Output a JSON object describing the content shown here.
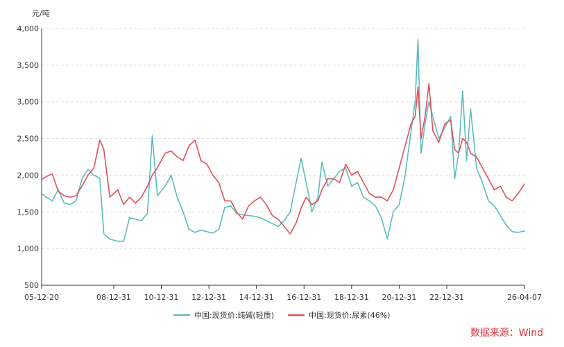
{
  "chart_data": {
    "type": "line",
    "title": "",
    "ylabel": "元/吨",
    "xlabel": "",
    "ylim": [
      500,
      4000
    ],
    "yticks": [
      500,
      1000,
      1500,
      2000,
      2500,
      3000,
      3500,
      4000
    ],
    "ytick_labels": [
      "500",
      "1,000",
      "1,500",
      "2,000",
      "2,500",
      "3,000",
      "3,500",
      "4,000"
    ],
    "xlim": [
      "2005-12-20",
      "2026-04-07"
    ],
    "xticks": [
      "2005-12-20",
      "2008-12-31",
      "2010-12-31",
      "2012-12-31",
      "2014-12-31",
      "2016-12-31",
      "2018-12-31",
      "2020-12-31",
      "2022-12-31",
      "2026-04-07"
    ],
    "xtick_labels": [
      "05-12-20",
      "08-12-31",
      "10-12-31",
      "12-12-31",
      "14-12-31",
      "16-12-31",
      "18-12-31",
      "20-12-31",
      "22-12-31",
      "26-04-07"
    ],
    "grid": "horizontal-dashed",
    "legend_position": "bottom-center",
    "source": "数据来源：Wind",
    "series": [
      {
        "name": "中国:现货价:纯碱(轻质)",
        "color": "#5bbcbd",
        "points": [
          [
            "2005-12-20",
            1750
          ],
          [
            "2006-03-01",
            1700
          ],
          [
            "2006-06-01",
            1650
          ],
          [
            "2006-09-01",
            1800
          ],
          [
            "2006-12-01",
            1620
          ],
          [
            "2007-03-01",
            1600
          ],
          [
            "2007-06-01",
            1650
          ],
          [
            "2007-09-01",
            1950
          ],
          [
            "2007-12-01",
            2080
          ],
          [
            "2008-03-01",
            2000
          ],
          [
            "2008-06-01",
            1960
          ],
          [
            "2008-08-01",
            1200
          ],
          [
            "2008-11-01",
            1130
          ],
          [
            "2009-03-01",
            1100
          ],
          [
            "2009-06-01",
            1100
          ],
          [
            "2009-09-01",
            1420
          ],
          [
            "2009-12-01",
            1400
          ],
          [
            "2010-03-01",
            1380
          ],
          [
            "2010-06-01",
            1480
          ],
          [
            "2010-08-15",
            2540
          ],
          [
            "2010-11-01",
            1720
          ],
          [
            "2011-03-01",
            1850
          ],
          [
            "2011-06-01",
            2000
          ],
          [
            "2011-09-01",
            1700
          ],
          [
            "2011-12-01",
            1500
          ],
          [
            "2012-03-01",
            1260
          ],
          [
            "2012-06-01",
            1220
          ],
          [
            "2012-09-01",
            1250
          ],
          [
            "2012-12-01",
            1230
          ],
          [
            "2013-03-01",
            1210
          ],
          [
            "2013-06-01",
            1260
          ],
          [
            "2013-09-01",
            1560
          ],
          [
            "2013-12-01",
            1580
          ],
          [
            "2014-03-01",
            1480
          ],
          [
            "2014-06-01",
            1460
          ],
          [
            "2014-09-01",
            1450
          ],
          [
            "2014-12-01",
            1440
          ],
          [
            "2015-03-01",
            1420
          ],
          [
            "2015-06-01",
            1380
          ],
          [
            "2015-09-01",
            1340
          ],
          [
            "2015-12-01",
            1300
          ],
          [
            "2016-03-01",
            1380
          ],
          [
            "2016-06-01",
            1500
          ],
          [
            "2016-09-01",
            1900
          ],
          [
            "2016-11-15",
            2230
          ],
          [
            "2017-02-01",
            1900
          ],
          [
            "2017-05-01",
            1500
          ],
          [
            "2017-08-01",
            1700
          ],
          [
            "2017-10-01",
            2180
          ],
          [
            "2018-01-01",
            1850
          ],
          [
            "2018-04-01",
            1950
          ],
          [
            "2018-07-01",
            2050
          ],
          [
            "2018-10-01",
            2100
          ],
          [
            "2019-01-01",
            1850
          ],
          [
            "2019-04-01",
            1900
          ],
          [
            "2019-07-01",
            1700
          ],
          [
            "2019-10-01",
            1650
          ],
          [
            "2020-01-01",
            1580
          ],
          [
            "2020-04-01",
            1420
          ],
          [
            "2020-07-01",
            1130
          ],
          [
            "2020-10-01",
            1500
          ],
          [
            "2021-01-01",
            1600
          ],
          [
            "2021-04-01",
            2000
          ],
          [
            "2021-07-01",
            2600
          ],
          [
            "2021-09-01",
            3000
          ],
          [
            "2021-10-15",
            3850
          ],
          [
            "2021-12-01",
            2300
          ],
          [
            "2022-02-01",
            2700
          ],
          [
            "2022-04-01",
            3000
          ],
          [
            "2022-06-01",
            2800
          ],
          [
            "2022-09-01",
            2500
          ],
          [
            "2022-12-01",
            2650
          ],
          [
            "2023-03-01",
            2800
          ],
          [
            "2023-05-01",
            1950
          ],
          [
            "2023-07-01",
            2300
          ],
          [
            "2023-09-01",
            3150
          ],
          [
            "2023-11-01",
            2200
          ],
          [
            "2024-01-01",
            2900
          ],
          [
            "2024-04-01",
            2100
          ],
          [
            "2024-07-01",
            1900
          ],
          [
            "2024-10-01",
            1650
          ],
          [
            "2025-01-01",
            1580
          ],
          [
            "2025-04-01",
            1450
          ],
          [
            "2025-07-01",
            1320
          ],
          [
            "2025-10-01",
            1230
          ],
          [
            "2026-01-01",
            1220
          ],
          [
            "2026-04-07",
            1240
          ]
        ]
      },
      {
        "name": "中国:现货价:尿素(46%)",
        "color": "#e0505a",
        "points": [
          [
            "2005-12-20",
            1940
          ],
          [
            "2006-03-01",
            1980
          ],
          [
            "2006-06-01",
            2020
          ],
          [
            "2006-09-01",
            1780
          ],
          [
            "2006-12-01",
            1720
          ],
          [
            "2007-03-01",
            1700
          ],
          [
            "2007-06-01",
            1720
          ],
          [
            "2007-09-01",
            1850
          ],
          [
            "2007-12-01",
            2000
          ],
          [
            "2008-03-01",
            2100
          ],
          [
            "2008-06-01",
            2480
          ],
          [
            "2008-08-01",
            2350
          ],
          [
            "2008-11-01",
            1700
          ],
          [
            "2009-03-01",
            1800
          ],
          [
            "2009-06-01",
            1600
          ],
          [
            "2009-09-01",
            1700
          ],
          [
            "2009-12-01",
            1620
          ],
          [
            "2010-03-01",
            1700
          ],
          [
            "2010-06-01",
            1850
          ],
          [
            "2010-08-15",
            2000
          ],
          [
            "2010-11-01",
            2100
          ],
          [
            "2011-03-01",
            2300
          ],
          [
            "2011-06-01",
            2330
          ],
          [
            "2011-09-01",
            2250
          ],
          [
            "2011-12-01",
            2200
          ],
          [
            "2012-03-01",
            2400
          ],
          [
            "2012-06-01",
            2480
          ],
          [
            "2012-09-01",
            2200
          ],
          [
            "2012-12-01",
            2150
          ],
          [
            "2013-03-01",
            2000
          ],
          [
            "2013-06-01",
            1900
          ],
          [
            "2013-09-01",
            1650
          ],
          [
            "2013-12-01",
            1650
          ],
          [
            "2014-03-01",
            1500
          ],
          [
            "2014-06-01",
            1400
          ],
          [
            "2014-09-01",
            1580
          ],
          [
            "2014-12-01",
            1650
          ],
          [
            "2015-03-01",
            1700
          ],
          [
            "2015-06-01",
            1600
          ],
          [
            "2015-09-01",
            1450
          ],
          [
            "2015-12-01",
            1400
          ],
          [
            "2016-03-01",
            1300
          ],
          [
            "2016-06-01",
            1200
          ],
          [
            "2016-09-01",
            1350
          ],
          [
            "2016-11-15",
            1550
          ],
          [
            "2017-02-01",
            1700
          ],
          [
            "2017-05-01",
            1600
          ],
          [
            "2017-08-01",
            1650
          ],
          [
            "2017-10-01",
            1800
          ],
          [
            "2018-01-01",
            1950
          ],
          [
            "2018-04-01",
            1950
          ],
          [
            "2018-07-01",
            1900
          ],
          [
            "2018-10-01",
            2150
          ],
          [
            "2019-01-01",
            2000
          ],
          [
            "2019-04-01",
            2050
          ],
          [
            "2019-07-01",
            1900
          ],
          [
            "2019-10-01",
            1750
          ],
          [
            "2020-01-01",
            1700
          ],
          [
            "2020-04-01",
            1700
          ],
          [
            "2020-07-01",
            1650
          ],
          [
            "2020-10-01",
            1800
          ],
          [
            "2021-01-01",
            2100
          ],
          [
            "2021-04-01",
            2400
          ],
          [
            "2021-07-01",
            2700
          ],
          [
            "2021-09-01",
            2800
          ],
          [
            "2021-10-15",
            3200
          ],
          [
            "2021-12-01",
            2500
          ],
          [
            "2022-02-01",
            2800
          ],
          [
            "2022-04-01",
            3250
          ],
          [
            "2022-06-01",
            2600
          ],
          [
            "2022-09-01",
            2450
          ],
          [
            "2022-12-01",
            2700
          ],
          [
            "2023-03-01",
            2750
          ],
          [
            "2023-05-01",
            2350
          ],
          [
            "2023-07-01",
            2300
          ],
          [
            "2023-09-01",
            2500
          ],
          [
            "2023-11-01",
            2450
          ],
          [
            "2024-01-01",
            2300
          ],
          [
            "2024-04-01",
            2250
          ],
          [
            "2024-07-01",
            2100
          ],
          [
            "2024-10-01",
            1950
          ],
          [
            "2025-01-01",
            1800
          ],
          [
            "2025-04-01",
            1850
          ],
          [
            "2025-07-01",
            1700
          ],
          [
            "2025-10-01",
            1650
          ],
          [
            "2026-01-01",
            1750
          ],
          [
            "2026-04-07",
            1880
          ]
        ]
      }
    ]
  }
}
